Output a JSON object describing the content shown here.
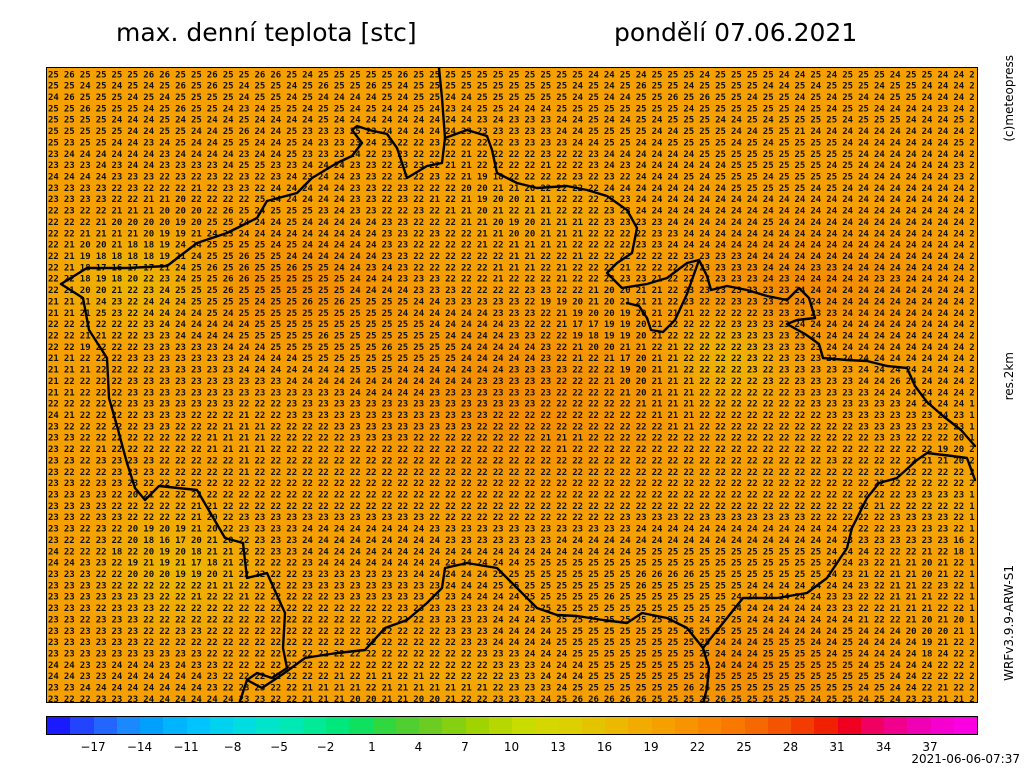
{
  "header": {
    "title": "max. denní teplota [stc]",
    "date": "pondělí 07.06.2021"
  },
  "side_labels": {
    "credit": "(c)meteopress",
    "resolution": "res.2km",
    "model": "WRFv3.9.9-ARW-S1"
  },
  "footer": {
    "timestamp": "2021-06-06-07:37"
  },
  "legend": {
    "ticks": [
      "−17",
      "−14",
      "−11",
      "−8",
      "−5",
      "−2",
      "1",
      "4",
      "7",
      "10",
      "13",
      "16",
      "19",
      "22",
      "25",
      "28",
      "31",
      "34",
      "37"
    ],
    "colors": [
      "#1a1aff",
      "#2244ff",
      "#2266ff",
      "#1a88ff",
      "#00a0ff",
      "#00b4ff",
      "#00c4ff",
      "#00d2f0",
      "#00dde0",
      "#00e4cc",
      "#00e8b4",
      "#00ea98",
      "#00e87c",
      "#10e060",
      "#30d840",
      "#50d030",
      "#6ccc22",
      "#86d012",
      "#a0d400",
      "#b6d800",
      "#c8dc00",
      "#d4d800",
      "#dcd000",
      "#e4c400",
      "#ecb800",
      "#f2ac00",
      "#f6a000",
      "#f89400",
      "#fa8600",
      "#f87800",
      "#f66800",
      "#f45400",
      "#f23c00",
      "#f02000",
      "#f00020",
      "#f00060",
      "#f0008c",
      "#f000b4",
      "#f600d0",
      "#fc00e4"
    ]
  },
  "map_data": {
    "rows": [
      "25 26 25 25 25 25 26 26 25 25 26 25 25 26 26 25 24 25 25 25 25 25 26 25 25 25 25 25 25 25 25 25 25 25 24 24 25 24 25 25 25 24 25 25 25 25 24 24 25 24 25 25 25 24 25 25 24 24 2",
      "25 25 24 25 24 25 24 25 26 25 26 25 24 25 25 24 25 26 25 25 26 25 24 25 25 25 25 25 25 25 25 25 25 24 25 24 25 26 25 25 24 25 25 25 25 24 24 25 24 25 25 25 24 25 25 24 24 24 2",
      "24 26 25 25 25 24 25 24 25 25 25 25 24 25 25 24 25 24 24 24 24 25 24 25 25 24 24 25 25 25 25 25 25 24 25 24 24 25 25 26 25 26 25 25 24 25 25 24 25 24 25 24 24 25 25 24 24 24 2",
      "25 25 26 25 25 25 24 25 26 25 25 24 23 24 25 25 24 25 25 24 25 24 24 25 24 23 24 25 25 24 24 24 25 25 25 25 25 25 25 25 24 25 25 25 25 25 25 24 25 24 25 25 24 24 24 24 23 24 2",
      "25 25 25 25 24 24 24 25 24 25 24 24 25 24 24 24 24 25 24 24 24 24 24 24 24 24 24 23 24 23 23 23 24 24 25 24 24 25 24 25 25 25 24 24 25 24 25 25 25 25 24 25 25 25 24 24 24 25 2",
      "25 25 25 25 25 24 24 25 25 24 24 25 26 24 24 25 23 23 23 25 23 24 24 24 24 24 23 23 23 23 23 23 24 24 25 25 25 25 24 24 25 25 25 24 24 25 25 21 24 24 24 24 24 24 24 24 24 24 2",
      "25 23 25 25 24 24 23 24 25 24 24 25 25 24 24 25 24 23 23 23 24 23 22 22 23 22 22 22 22 23 23 23 23 24 24 25 25 24 24 25 25 25 25 24 25 24 25 25 25 25 24 24 24 24 24 24 24 25 2",
      "23 24 24 24 24 24 24 23 24 24 24 24 23 24 24 25 23 23 23 24 22 23 23 22 22 22 21 22 22 22 22 23 22 22 23 24 24 24 24 24 24 25 25 25 25 25 25 25 25 25 25 24 24 24 24 24 24 24 2",
      "23 23 23 24 23 24 24 23 23 23 23 24 25 25 23 23 24 24 24 23 23 22 23 23 22 21 21 22 22 22 22 21 22 22 23 24 23 24 24 24 24 24 24 25 25 25 25 25 25 24 25 24 24 24 24 24 24 23 2",
      "24 24 24 24 23 23 23 22 23 22 23 22 23 22 23 24 23 24 24 23 23 22 23 22 23 22 21 19 18 22 22 22 22 23 22 23 22 24 24 24 25 24 25 25 25 24 25 25 25 25 25 24 24 24 24 24 24 23 2",
      "23 23 23 23 22 23 22 22 22 21 22 23 23 22 24 24 24 24 24 23 23 22 23 22 22 22 20 20 21 21 20 22 22 22 22 24 24 24 24 24 24 24 24 25 25 25 25 25 24 25 24 24 24 24 24 24 24 24 2",
      "23 23 23 23 22 22 21 21 20 22 22 22 22 25 24 24 24 24 24 23 23 22 23 22 21 22 21 19 20 20 21 21 22 22 22 23 23 24 24 24 24 24 24 24 24 24 24 24 24 24 24 24 24 24 24 24 24 24 2",
      "22 23 22 22 21 21 21 20 20 20 22 26 25 24 25 25 25 23 24 23 23 22 22 23 22 21 21 20 21 22 21 21 22 22 22 23 23 24 24 24 24 24 24 24 24 24 24 24 24 24 24 24 24 24 24 24 24 24 2",
      "22 22 22 21 20 20 20 20 19 20 25 25 24 24 24 25 24 24 24 24 24 23 23 22 22 22 21 21 20 19 20 21 21 21 22 23 23 23 23 24 24 24 24 24 24 25 24 24 24 24 24 24 24 24 24 24 24 24 2",
      "22 22 21 21 21 21 20 19 19 21 24 23 24 24 24 24 24 24 24 24 24 23 23 22 23 22 22 21 21 20 20 21 21 21 22 22 22 22 23 23 24 24 24 24 24 24 24 24 24 24 24 24 24 24 24 24 24 24 2",
      "22 21 20 20 21 18 18 19 24 24 25 25 25 25 24 25 24 24 24 24 24 23 23 22 22 22 22 21 22 21 21 21 21 22 22 22 22 23 23 24 24 24 24 24 24 24 24 24 24 24 24 24 24 24 24 24 24 24 2",
      "22 21 19 18 18 18 18 19 21 24 25 25 26 25 25 24 24 24 24 24 24 23 23 22 22 22 22 22 22 21 21 22 22 21 22 22 22 22 22 22 23 23 23 23 24 24 24 24 24 24 24 24 24 24 24 24 24 24 2",
      "22 21 18 17 16 17 17 21 24 25 26 25 26 25 25 26 25 25 24 24 23 24 23 22 22 22 22 22 21 21 21 22 21 22 22 22 21 22 22 22 22 23 23 23 23 24 24 24 23 23 24 24 24 24 24 24 24 24 2",
      "22 22 18 19 18 20 22 23 24 25 25 26 26 25 25 25 25 25 25 24 24 24 23 23 23 22 22 22 21 22 22 22 21 22 22 23 23 23 21 22 22 23 23 23 23 24 23 24 24 24 24 24 23 23 24 24 24 24 2",
      "22 21 20 20 21 22 23 24 25 25 25 26 25 25 25 25 25 25 25 24 24 24 24 23 23 23 22 22 22 22 23 23 22 22 21 20 20 21 21 22 23 23 23 23 23 23 23 24 24 24 24 24 24 24 24 24 24 24 2",
      "21 21 21 24 23 22 24 24 24 25 25 25 25 24 25 25 26 25 26 25 25 25 25 24 24 23 23 23 23 23 22 19 19 20 21 20 21 21 21 22 23 22 22 23 23 23 23 24 24 24 24 24 24 24 24 24 24 24 2",
      "21 21 21 25 23 22 24 24 24 24 25 24 25 25 25 25 25 25 25 25 25 25 24 24 24 24 24 24 23 23 23 22 21 19 20 20 19 20 21 21 21 22 22 22 22 23 23 23 23 23 24 24 24 24 24 24 24 24 2",
      "22 22 22 22 22 22 23 24 24 24 24 24 24 25 25 25 25 25 25 25 25 25 25 25 24 24 24 24 24 23 22 22 21 17 17 19 19 20 21 22 22 22 22 23 23 23 23 24 24 24 24 24 24 24 24 24 24 24 2",
      "22 22 21 21 22 22 23 23 24 24 24 24 25 25 25 25 25 26 25 25 25 25 25 25 25 24 24 24 24 23 23 22 22 19 18 19 19 20 21 22 22 22 22 23 23 23 23 23 24 24 24 24 24 24 24 24 24 24 2",
      "22 22 19 22 22 22 23 23 23 23 23 24 24 24 25 25 25 25 25 25 25 26 25 25 25 25 24 24 24 24 24 23 22 21 20 20 21 21 22 21 22 22 22 22 23 23 23 23 23 24 24 24 24 24 24 24 24 24 2",
      "21 21 22 22 22 23 23 23 23 23 23 23 24 24 24 24 25 25 25 25 25 25 25 25 25 25 24 24 24 24 24 23 22 21 22 21 17 20 21 21 22 22 22 22 23 22 23 23 23 23 24 24 24 24 24 24 24 24 2",
      "21 21 21 22 22 22 22 23 23 23 23 23 24 24 24 24 24 24 24 25 25 25 24 24 24 24 24 24 24 23 23 23 23 22 22 22 19 20 21 21 22 22 22 22 23 22 23 23 23 23 23 24 24 24 24 24 24 24 2",
      "21 22 22 22 22 23 23 23 23 23 23 23 23 23 23 24 24 24 24 24 24 24 24 24 24 24 24 23 23 23 23 23 22 22 22 21 20 20 21 21 21 22 22 22 22 23 22 23 23 23 23 24 24 26 24 24 24 24 2",
      "21 21 22 22 22 23 23 23 23 23 23 23 23 23 23 23 23 23 23 24 24 24 24 24 23 23 23 23 23 23 23 23 22 22 22 22 21 20 21 21 21 22 22 22 22 22 22 23 23 23 23 23 24 24 24 24 24 24 2",
      "22 22 22 22 22 23 23 23 23 23 23 23 22 22 22 23 23 23 23 23 23 23 23 23 23 23 23 23 23 23 23 22 22 22 22 22 22 21 21 21 21 22 22 22 22 22 22 22 23 23 23 23 23 23 24 24 24 24 1",
      "24 21 22 22 22 22 23 23 23 22 22 22 21 22 22 23 23 23 23 23 23 23 23 23 23 23 23 23 22 22 22 22 22 22 22 22 22 22 21 21 21 22 22 22 22 22 22 22 22 23 23 23 23 23 23 23 24 23 1",
      "23 22 22 22 22 22 23 23 22 22 22 21 21 21 22 22 22 22 23 23 23 23 23 23 23 23 23 22 22 22 22 22 22 22 22 22 22 22 22 21 21 22 22 22 22 22 22 22 22 22 22 23 23 23 23 23 22 23 1",
      "23 23 22 22 22 22 22 22 22 22 21 21 21 21 22 22 22 22 22 23 23 23 23 22 22 22 22 22 22 22 22 21 21 21 22 22 22 22 22 22 22 22 22 22 22 22 22 22 22 22 22 22 23 23 22 22 22 20 1",
      "23 22 22 21 22 22 22 22 22 22 21 21 21 21 22 22 22 22 22 22 22 22 22 22 22 22 22 22 22 22 22 22 21 22 22 22 22 22 22 22 22 22 22 22 22 22 22 22 22 22 22 22 22 22 22 22 19 20 2",
      "23 23 22 23 23 23 23 22 22 22 22 22 21 22 22 22 22 22 22 22 22 22 22 22 22 22 22 22 22 22 22 22 22 22 22 22 22 22 22 22 22 22 22 22 22 22 22 22 22 23 22 22 22 22 22 21 21 20 2",
      "23 22 22 22 23 23 23 22 22 22 22 22 21 22 22 22 22 22 22 22 22 22 22 22 22 22 22 22 22 22 22 22 22 22 22 22 22 22 22 22 22 22 22 22 22 22 22 22 22 22 22 22 22 22 22 22 22 22 2",
      "23 23 22 23 23 23 22 22 22 22 22 22 22 22 22 22 22 22 22 22 22 22 22 22 22 22 22 22 22 22 22 22 22 22 22 22 22 22 22 22 22 22 22 22 22 22 22 22 22 22 22 22 22 22 22 22 22 22 2",
      "23 23 23 23 22 20 21 22 22 22 22 22 22 22 22 22 22 22 22 22 22 22 22 22 22 22 22 22 22 22 22 22 22 22 22 22 22 22 22 22 22 22 22 22 22 22 22 22 22 22 22 22 22 22 23 23 23 23 1",
      "23 23 23 23 22 22 22 22 22 21 21 22 22 22 22 22 22 22 22 22 22 22 22 22 22 22 22 22 22 22 22 22 22 22 22 22 22 22 22 22 22 22 22 22 22 22 22 22 22 22 22 22 21 22 22 22 22 22 1",
      "23 23 22 23 23 22 22 22 22 21 20 22 23 23 23 23 23 23 23 23 23 23 23 23 22 22 22 22 22 22 22 22 22 22 22 22 23 23 23 23 22 23 23 23 23 23 23 23 22 22 22 22 22 23 23 23 23 22 1",
      "23 23 22 23 22 20 19 20 19 21 20 22 23 23 23 23 24 24 24 24 24 24 24 24 23 23 23 23 23 23 23 23 23 23 23 23 23 24 24 24 24 24 24 24 24 24 24 24 24 24 22 22 22 23 23 23 23 22 1",
      "23 22 22 23 22 20 18 16 17 20 21 20 22 23 23 23 24 24 24 24 24 24 24 24 24 23 23 23 23 23 23 23 24 24 24 24 24 24 24 24 24 24 24 24 24 24 24 24 24 24 23 23 23 23 23 23 23 16 2",
      "24 22 22 22 18 22 20 19 20 18 21 21 22 22 23 23 24 24 24 24 24 24 24 24 24 24 24 24 24 24 24 24 24 24 24 24 24 25 25 25 25 25 25 25 25 25 25 25 25 24 24 24 22 22 22 21 22 18 1",
      "24 24 23 23 22 19 21 19 21 17 18 21 22 22 22 22 23 24 24 24 24 24 24 24 24 24 24 24 24 24 25 25 25 25 25 25 25 25 25 25 25 25 25 25 25 25 25 25 25 24 24 23 22 21 21 20 21 22 1",
      "23 23 23 22 22 20 20 20 19 19 20 21 22 22 22 22 23 23 23 23 23 23 23 24 24 24 24 24 25 25 25 25 25 25 25 25 25 26 26 26 26 25 25 25 25 25 25 25 25 24 23 21 22 21 21 20 21 22 1",
      "23 23 23 23 22 22 22 22 22 22 21 21 22 22 22 22 23 23 23 23 23 23 23 23 23 24 24 24 25 25 25 25 25 25 25 25 25 26 25 25 25 25 25 25 24 24 24 24 24 24 24 23 22 21 21 22 23 22 1",
      "23 23 23 23 23 23 23 22 22 21 22 22 21 22 22 22 22 22 23 23 23 23 23 23 23 23 24 24 24 24 25 25 25 25 25 26 25 25 25 25 25 25 25 24 24 24 24 24 24 23 23 22 22 21 21 21 22 22 1",
      "23 23 23 22 23 23 23 22 22 22 22 22 22 22 22 22 22 22 22 22 22 22 23 23 23 23 23 23 24 24 25 25 25 25 25 25 25 25 25 25 25 25 25 24 24 24 24 24 24 23 23 22 22 21 21 21 22 22 1",
      "23 23 22 23 23 23 22 22 22 22 22 22 22 22 22 22 22 22 22 22 22 22 22 22 23 23 23 23 24 24 24 25 25 25 25 25 25 25 25 25 25 24 25 25 24 24 24 24 24 24 24 21 22 22 21 20 21 20 1",
      "23 23 23 23 23 23 22 22 23 23 22 22 22 22 22 22 22 22 22 22 22 22 22 22 22 23 23 23 24 24 24 24 25 25 25 25 25 25 25 25 25 25 25 25 25 24 24 24 24 24 25 24 24 24 20 20 20 21 1",
      "23 23 23 23 23 23 22 22 22 22 22 22 22 22 22 22 22 22 22 22 22 22 22 22 22 22 23 23 24 24 24 24 25 25 25 25 25 25 25 25 25 25 24 24 24 25 25 25 24 24 25 24 24 24 24 19 21 22 2",
      "23 23 23 23 23 23 23 23 23 23 22 22 22 22 22 22 22 22 22 22 22 22 22 22 22 22 22 23 23 23 24 24 24 25 25 25 25 25 25 25 25 25 24 24 24 25 25 25 25 24 25 24 24 24 24 18 24 22 2",
      "24 24 23 23 24 24 24 23 24 23 23 22 22 22 22 22 22 22 22 22 22 22 22 22 22 22 22 22 23 23 23 24 24 24 25 25 25 25 25 25 25 25 24 24 24 25 25 25 25 25 25 24 25 24 24 24 22 22 2",
      "24 24 23 23 24 24 24 24 24 24 23 22 22 22 22 22 22 22 21 22 21 21 22 21 22 22 22 22 22 23 23 24 24 24 25 25 25 25 25 25 25 26 25 25 25 25 25 25 25 25 25 25 25 24 24 22 22 22 2",
      "23 23 24 24 24 24 24 24 24 24 23 22 23 23 22 22 21 21 21 21 22 21 21 21 21 21 21 21 22 23 23 23 24 25 25 25 25 25 25 25 26 26 25 25 25 25 25 25 25 25 25 24 25 24 24 22 21 22 2",
      "23 22 22 23 23 23 24 24 24 24 24 24 23 23 22 22 21 21 21 20 20 21 21 20 20 21 22 22 23 23 23 24 25 26 26 26 26 26 25 25 25 25 26 25 25 25 25 25 24 25 25 24 25 24 23 23 21 21 2"
    ]
  }
}
